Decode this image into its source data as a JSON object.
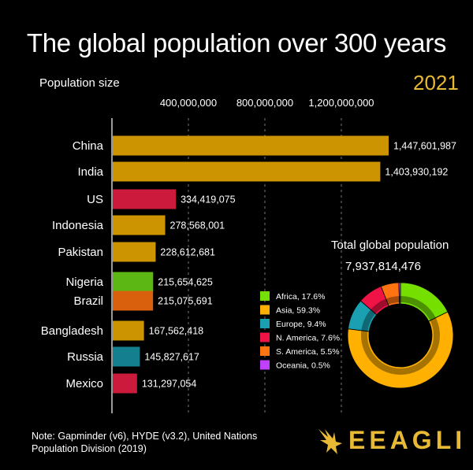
{
  "title": "The global population over 300 years",
  "subtitle": "Population size",
  "year": "2021",
  "total": {
    "label": "Total global population",
    "value": "7,937,814,476"
  },
  "note": "Note: Gapminder (v6), HYDE (v3.2), United Nations Population Division (2019)",
  "brand": "EEAGLI",
  "chart_data": {
    "type": "bar",
    "orientation": "horizontal",
    "x_ticks": [
      "400,000,000",
      "800,000,000",
      "1,200,000,000"
    ],
    "x_tick_values": [
      400000000,
      800000000,
      1200000000
    ],
    "xlim": [
      0,
      1447601987
    ],
    "grid": true,
    "categories": [
      "China",
      "India",
      "US",
      "Indonesia",
      "Pakistan",
      "Nigeria",
      "Brazil",
      "Bangladesh",
      "Russia",
      "Mexico"
    ],
    "values": [
      1447601987,
      1403930192,
      334419075,
      278568001,
      228612681,
      215654625,
      215075691,
      167562418,
      145827617,
      131297054
    ],
    "value_labels": [
      "1,447,601,987",
      "1,403,930,192",
      "334,419,075",
      "278,568,001",
      "228,612,681",
      "215,654,625",
      "215,075,691",
      "167,562,418",
      "145,827,617",
      "131,297,054"
    ],
    "region": [
      "Asia",
      "Asia",
      "N. America",
      "Asia",
      "Asia",
      "Africa",
      "S. America",
      "Asia",
      "Europe",
      "N. America"
    ],
    "region_colors": {
      "Africa": "#5cb614",
      "Asia": "#cc9400",
      "Europe": "#14808f",
      "N. America": "#cc1a3c",
      "S. America": "#d9610e",
      "Oceania": "#9b35c8"
    },
    "legend": [
      {
        "label": "Africa, 17.6%",
        "color": "#75e000",
        "share": 17.6
      },
      {
        "label": "Asia, 59.3%",
        "color": "#ffb000",
        "share": 59.3
      },
      {
        "label": "Europe, 9.4%",
        "color": "#1aa0b0",
        "share": 9.4
      },
      {
        "label": "N. America, 7.6%",
        "color": "#f01446",
        "share": 7.6
      },
      {
        "label": "S. America, 5.5%",
        "color": "#ff7410",
        "share": 5.5
      },
      {
        "label": "Oceania, 0.5%",
        "color": "#c040ff",
        "share": 0.5
      }
    ],
    "legend_position": "center-right",
    "donut": {
      "order": [
        "Africa",
        "Asia",
        "Europe",
        "N. America",
        "S. America",
        "Oceania"
      ],
      "colors": [
        "#75e000",
        "#ffb000",
        "#1aa0b0",
        "#f01446",
        "#ff7410",
        "#c040ff"
      ],
      "shares": [
        17.6,
        59.3,
        9.4,
        7.6,
        5.5,
        0.5
      ]
    }
  }
}
